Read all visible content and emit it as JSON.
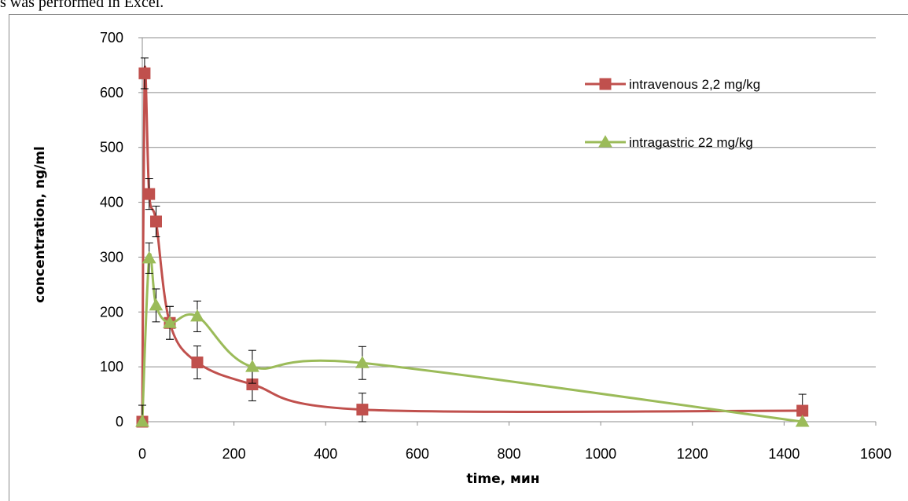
{
  "top_text": "s was performed in Excel.",
  "colors": {
    "intravenous": "#c0504d",
    "intragastric": "#9bbb59",
    "grid": "#8c8c8c",
    "error_bar": "#000000"
  },
  "chart_data": {
    "type": "line",
    "title": "",
    "xlabel": "time, мин",
    "ylabel": "concentration, ng/ml",
    "xlim": [
      0,
      1600
    ],
    "ylim": [
      0,
      700
    ],
    "x_ticks": [
      0,
      200,
      400,
      600,
      800,
      1000,
      1200,
      1400,
      1600
    ],
    "y_ticks": [
      0,
      100,
      200,
      300,
      400,
      500,
      600,
      700
    ],
    "grid": true,
    "legend_position": "top-right inside plot",
    "series": [
      {
        "name": "intravenous 2,2 mg/kg",
        "marker": "square",
        "color": "#c0504d",
        "x": [
          0,
          5,
          15,
          30,
          60,
          120,
          240,
          480,
          1440
        ],
        "y": [
          0,
          635,
          415,
          365,
          180,
          108,
          68,
          22,
          20
        ],
        "error": [
          0,
          28,
          28,
          28,
          30,
          30,
          30,
          30,
          30
        ]
      },
      {
        "name": "intragastric 22 mg/kg",
        "marker": "triangle",
        "color": "#9bbb59",
        "x": [
          0,
          15,
          30,
          60,
          120,
          240,
          480,
          1440
        ],
        "y": [
          0,
          298,
          212,
          180,
          192,
          100,
          107,
          0
        ],
        "error": [
          30,
          28,
          30,
          30,
          28,
          30,
          30,
          0
        ]
      }
    ]
  }
}
